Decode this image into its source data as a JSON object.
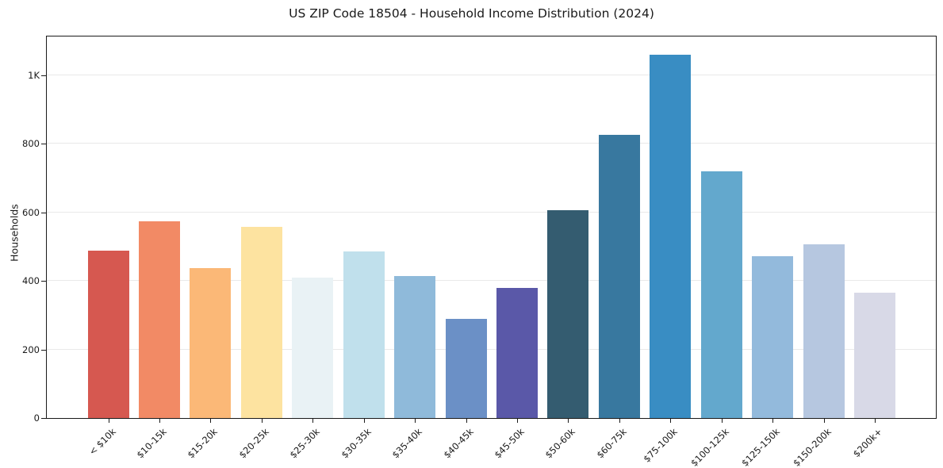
{
  "chart_data": {
    "type": "bar",
    "title": "US ZIP Code 18504 - Household Income Distribution (2024)",
    "xlabel": "",
    "ylabel": "Households",
    "categories": [
      "< $10k",
      "$10-15k",
      "$15-20k",
      "$20-25k",
      "$25-30k",
      "$30-35k",
      "$35-40k",
      "$40-45k",
      "$45-50k",
      "$50-60k",
      "$60-75k",
      "$75-100k",
      "$100-125k",
      "$125-150k",
      "$150-200k",
      "$200k+"
    ],
    "values": [
      489,
      573,
      438,
      557,
      410,
      486,
      415,
      290,
      380,
      606,
      825,
      1060,
      720,
      472,
      507,
      365
    ],
    "bar_colors": [
      "#d65850",
      "#f28a65",
      "#fbb877",
      "#fde3a0",
      "#e9f2f5",
      "#c0e0ec",
      "#8fbada",
      "#6b90c6",
      "#5a58a8",
      "#345c70",
      "#38789f",
      "#398dc3",
      "#63a8cd",
      "#93badc",
      "#b6c7e0",
      "#d8d9e7"
    ],
    "yticks": [
      {
        "value": 0,
        "label": "0"
      },
      {
        "value": 200,
        "label": "200"
      },
      {
        "value": 400,
        "label": "400"
      },
      {
        "value": 600,
        "label": "600"
      },
      {
        "value": 800,
        "label": "800"
      },
      {
        "value": 1000,
        "label": "1K"
      }
    ],
    "ylim": [
      0,
      1113
    ],
    "grid": "horizontal",
    "legend": "none",
    "background_color": "#ffffff",
    "spine_color": "#1a1a1a",
    "grid_color": "#e9e9e9"
  }
}
